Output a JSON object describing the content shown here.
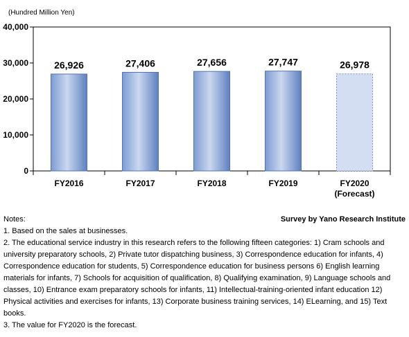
{
  "chart_data": {
    "type": "bar",
    "unit_label": "(Hundred Million Yen)",
    "categories": [
      "FY2016",
      "FY2017",
      "FY2018",
      "FY2019",
      "FY2020"
    ],
    "category_sublabels": [
      "",
      "",
      "",
      "",
      "(Forecast)"
    ],
    "values": [
      26926,
      27406,
      27656,
      27747,
      26978
    ],
    "value_labels": [
      "26,926",
      "27,406",
      "27,656",
      "27,747",
      "26,978"
    ],
    "forecast_flags": [
      false,
      false,
      false,
      false,
      true
    ],
    "ylim": [
      0,
      40000
    ],
    "yticks": [
      0,
      10000,
      20000,
      30000,
      40000
    ],
    "ytick_labels": [
      "0",
      "10,000",
      "20,000",
      "30,000",
      "40,000"
    ],
    "grid": false,
    "colors": {
      "bar_edge": "#4f74b8",
      "bar_light": "#cad8ef",
      "bar_mid": "#8aa6d7",
      "forecast_fill": "#d3def2",
      "forecast_edge": "#6f8ec8"
    }
  },
  "notes": {
    "title": "Notes:",
    "source": "Survey by Yano Research Institute",
    "items": [
      "1. Based on the sales at businesses.",
      "2. The educational service industry in this research refers to the following fifteen categories: 1) Cram schools and university preparatory schools, 2) Private tutor dispatching business, 3) Correspondence education for infants, 4) Correspondence education for students, 5) Correspondence education for business persons 6) English learning materials for infants, 7) Schools for acquisition of qualification, 8) Qualifying examination, 9) Language schools and classes, 10) Entrance exam preparatory schools for infants, 11) Intellectual-training-oriented infant education 12) Physical activities and exercises for infants, 13) Corporate business training services, 14) ELearning, and 15) Text books.",
      "3. The value for FY2020 is the forecast."
    ]
  }
}
